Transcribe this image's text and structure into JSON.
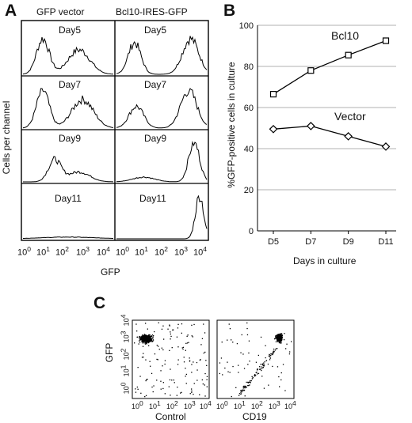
{
  "panel_a": {
    "letter": "A",
    "columns": [
      "GFP vector",
      "Bcl10-IRES-GFP"
    ],
    "ylabel": "Cells per channel",
    "xlabel": "GFP",
    "days": [
      "Day5",
      "Day7",
      "Day9",
      "Day11"
    ],
    "x_ticks": [
      "10",
      "10",
      "10",
      "10",
      "10"
    ],
    "x_tick_exponents": [
      "0",
      "1",
      "2",
      "3",
      "4"
    ]
  },
  "panel_b": {
    "letter": "B",
    "chart_data": {
      "type": "line",
      "categories": [
        "D5",
        "D7",
        "D9",
        "D11"
      ],
      "series": [
        {
          "name": "Bcl10",
          "marker": "square",
          "values": [
            66.5,
            78.0,
            85.5,
            92.5
          ]
        },
        {
          "name": "Vector",
          "marker": "diamond",
          "values": [
            49.5,
            51.0,
            46.0,
            41.0
          ]
        }
      ],
      "title": "",
      "xlabel": "Days in culture",
      "ylabel": "%GFP-positive cells in culture",
      "ylim": [
        0,
        100
      ],
      "yticks": [
        "0",
        "20",
        "40",
        "60",
        "80",
        "100"
      ],
      "grid": true
    }
  },
  "panel_c": {
    "letter": "C",
    "ylabel": "GFP",
    "xlabels": [
      "Control",
      "CD19"
    ],
    "ticks": [
      "10",
      "10",
      "10",
      "10",
      "10"
    ],
    "tick_exponents": [
      "0",
      "1",
      "2",
      "3",
      "4"
    ]
  }
}
